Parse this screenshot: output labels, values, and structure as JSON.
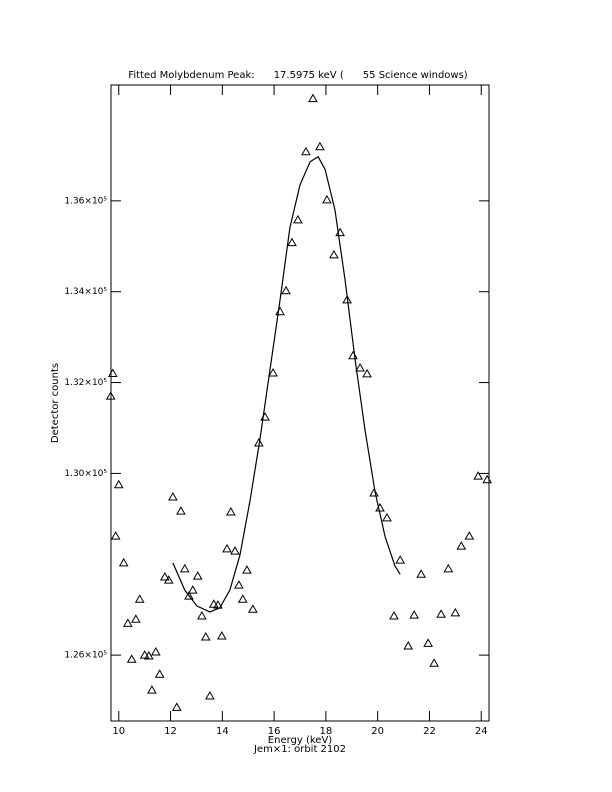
{
  "chart_data": {
    "type": "scatter",
    "title": "Fitted Molybdenum Peak:      17.5975 keV (      55 Science windows)",
    "x_label": "Energy (keV)",
    "y_label": "Detector counts",
    "note": "Jem×1: orbit 2102",
    "xlim": [
      9.7,
      24.3
    ],
    "xticks": [
      10,
      12,
      14,
      16,
      18,
      20,
      22,
      24
    ],
    "ylim": [
      124550,
      138550
    ],
    "yticks": [
      {
        "value": 126000,
        "label": "1.26×10⁵"
      },
      {
        "value": 130000,
        "label": "1.30×10⁵"
      },
      {
        "value": 132000,
        "label": "1.32×10⁵"
      },
      {
        "value": 134000,
        "label": "1.34×10⁵"
      },
      {
        "value": 136000,
        "label": "1.36×10⁵"
      }
    ],
    "series": [
      {
        "type": "scatter",
        "color": "#000000",
        "x": [
          9.69,
          9.77,
          9.88,
          10.0,
          10.19,
          10.35,
          10.5,
          10.66,
          10.81,
          11.0,
          11.16,
          11.28,
          11.43,
          11.58,
          11.78,
          11.93,
          12.09,
          12.24,
          12.4,
          12.55,
          12.71,
          12.86,
          13.05,
          13.21,
          13.36,
          13.52,
          13.67,
          13.83,
          13.98,
          14.18,
          14.33,
          14.49,
          14.64,
          14.79,
          14.95,
          15.18,
          15.41,
          15.65,
          15.96,
          16.23,
          16.46,
          16.69,
          16.92,
          17.23,
          17.5,
          17.77,
          18.04,
          18.31,
          18.55,
          18.82,
          19.05,
          19.32,
          19.59,
          19.86,
          20.09,
          20.36,
          20.63,
          20.87,
          21.18,
          21.41,
          21.68,
          21.95,
          22.18,
          22.45,
          22.73,
          23.0,
          23.23,
          23.54,
          23.88,
          24.23
        ],
        "values": [
          131700,
          132200,
          128620,
          129750,
          128030,
          126700,
          125910,
          126790,
          127230,
          126000,
          125980,
          125230,
          126070,
          125580,
          127720,
          127650,
          129480,
          124850,
          129170,
          127900,
          127300,
          127430,
          127740,
          126860,
          126400,
          125100,
          127120,
          127100,
          126420,
          128340,
          129150,
          128290,
          127540,
          127230,
          127870,
          127010,
          130670,
          131240,
          132210,
          133560,
          134020,
          135080,
          135580,
          137080,
          138250,
          137190,
          136020,
          134810,
          135300,
          133820,
          132590,
          132320,
          132190,
          129570,
          129240,
          129020,
          126860,
          128090,
          126200,
          126880,
          127780,
          126260,
          125820,
          126900,
          127900,
          126930,
          128400,
          128620,
          129940,
          129860
        ]
      },
      {
        "type": "line",
        "color": "#000000",
        "x": [
          12.09,
          12.55,
          13.02,
          13.52,
          13.9,
          14.29,
          14.68,
          15.06,
          15.45,
          15.84,
          16.23,
          16.61,
          17.0,
          17.39,
          17.7,
          17.97,
          18.35,
          18.74,
          19.13,
          19.51,
          19.9,
          20.29,
          20.67,
          20.87
        ],
        "values": [
          128030,
          127430,
          127080,
          126950,
          127040,
          127430,
          128200,
          129370,
          130740,
          132280,
          133820,
          135410,
          136350,
          136860,
          136970,
          136690,
          135800,
          134260,
          132500,
          130960,
          129590,
          128600,
          127960,
          127780
        ]
      }
    ]
  }
}
